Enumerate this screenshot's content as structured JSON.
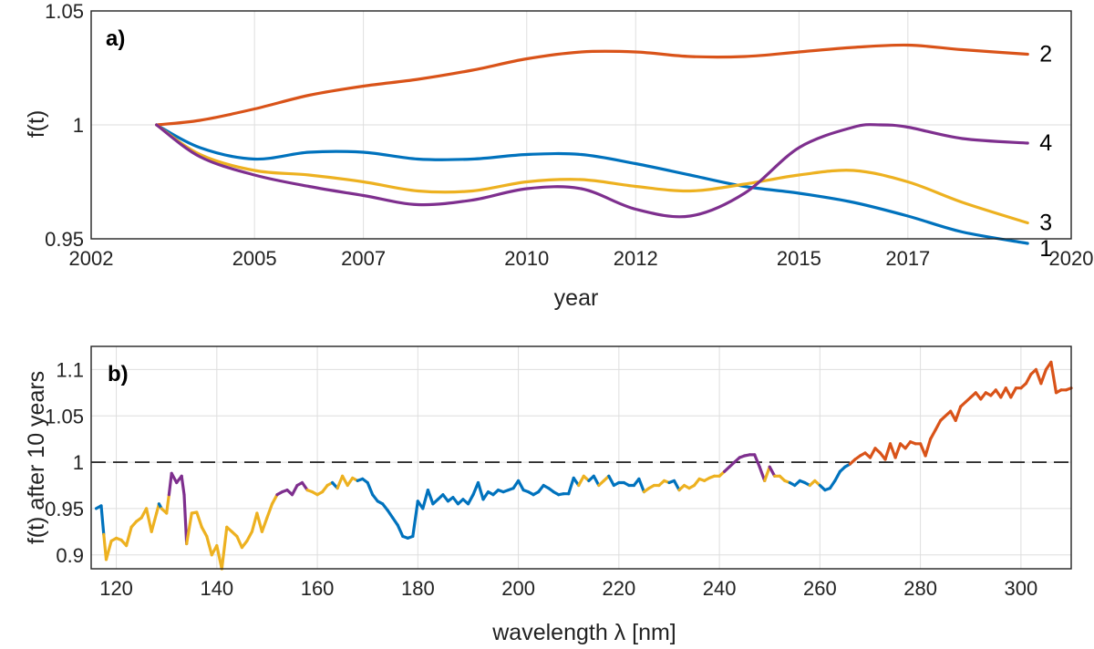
{
  "chart_data": [
    {
      "type": "line",
      "panel_label": "a)",
      "title": "",
      "xlabel": "year",
      "ylabel": "f(t)",
      "xlim": [
        2002,
        2020
      ],
      "ylim": [
        0.95,
        1.05
      ],
      "x_ticks": [
        2002,
        2005,
        2007,
        2010,
        2012,
        2015,
        2017,
        2020
      ],
      "y_ticks": [
        0.95,
        1,
        1.05
      ],
      "y_tick_labels": [
        "0.95",
        "1",
        "1.05"
      ],
      "grid": true,
      "series": [
        {
          "end_label": "1",
          "color": "#0072BD",
          "x": [
            2003.2,
            2004,
            2005,
            2006,
            2007,
            2008,
            2009,
            2010,
            2011,
            2012,
            2013,
            2014,
            2015,
            2016,
            2017,
            2018,
            2019.2
          ],
          "y": [
            1.0,
            0.99,
            0.985,
            0.988,
            0.988,
            0.985,
            0.985,
            0.987,
            0.987,
            0.983,
            0.978,
            0.973,
            0.97,
            0.966,
            0.96,
            0.953,
            0.948
          ]
        },
        {
          "end_label": "2",
          "color": "#D95319",
          "x": [
            2003.2,
            2004,
            2005,
            2006,
            2007,
            2008,
            2009,
            2010,
            2011,
            2012,
            2013,
            2014,
            2015,
            2016,
            2017,
            2018,
            2019.2
          ],
          "y": [
            1.0,
            1.002,
            1.007,
            1.013,
            1.017,
            1.02,
            1.024,
            1.029,
            1.032,
            1.032,
            1.03,
            1.03,
            1.032,
            1.034,
            1.035,
            1.033,
            1.031
          ]
        },
        {
          "end_label": "3",
          "color": "#EDB120",
          "x": [
            2003.2,
            2004,
            2005,
            2006,
            2007,
            2008,
            2009,
            2010,
            2011,
            2012,
            2013,
            2014,
            2015,
            2016,
            2017,
            2018,
            2019.2
          ],
          "y": [
            1.0,
            0.987,
            0.98,
            0.978,
            0.975,
            0.971,
            0.971,
            0.975,
            0.976,
            0.973,
            0.971,
            0.974,
            0.978,
            0.98,
            0.975,
            0.966,
            0.957
          ]
        },
        {
          "end_label": "4",
          "color": "#7E2F8E",
          "x": [
            2003.2,
            2004,
            2005,
            2006,
            2007,
            2008,
            2009,
            2010,
            2011,
            2012,
            2013,
            2014,
            2015,
            2016,
            2016.5,
            2017,
            2018,
            2019.2
          ],
          "y": [
            1.0,
            0.986,
            0.978,
            0.973,
            0.969,
            0.965,
            0.967,
            0.972,
            0.972,
            0.963,
            0.96,
            0.97,
            0.99,
            0.999,
            1.0,
            0.999,
            0.994,
            0.992
          ]
        }
      ]
    },
    {
      "type": "line",
      "panel_label": "b)",
      "title": "",
      "xlabel": "wavelength λ [nm]",
      "ylabel": "f(t) after 10 years",
      "xlim": [
        115,
        310
      ],
      "ylim": [
        0.885,
        1.125
      ],
      "x_ticks": [
        120,
        140,
        160,
        180,
        200,
        220,
        240,
        260,
        280,
        300
      ],
      "y_ticks": [
        0.9,
        0.95,
        1,
        1.05,
        1.1
      ],
      "y_tick_labels": [
        "0.9",
        "0.95",
        "1",
        "1.05",
        "1.1"
      ],
      "reference_line": {
        "y": 1,
        "style": "dashed"
      },
      "grid": true,
      "class_colors": {
        "1": "#0072BD",
        "2": "#D95319",
        "3": "#EDB120",
        "4": "#7E2F8E"
      },
      "points": [
        [
          116,
          0.95,
          1
        ],
        [
          117,
          0.953,
          1
        ],
        [
          117.5,
          0.922,
          3
        ],
        [
          118,
          0.895,
          3
        ],
        [
          119,
          0.915,
          3
        ],
        [
          120,
          0.918,
          3
        ],
        [
          121,
          0.916,
          3
        ],
        [
          122,
          0.91,
          3
        ],
        [
          123,
          0.93,
          3
        ],
        [
          124,
          0.936,
          3
        ],
        [
          125,
          0.94,
          3
        ],
        [
          126,
          0.95,
          3
        ],
        [
          127,
          0.925,
          3
        ],
        [
          128,
          0.945,
          3
        ],
        [
          128.5,
          0.955,
          1
        ],
        [
          129,
          0.95,
          3
        ],
        [
          130,
          0.945,
          3
        ],
        [
          130.5,
          0.965,
          4
        ],
        [
          131,
          0.988,
          4
        ],
        [
          132,
          0.978,
          4
        ],
        [
          133,
          0.985,
          4
        ],
        [
          133.5,
          0.965,
          4
        ],
        [
          134,
          0.912,
          3
        ],
        [
          135,
          0.945,
          3
        ],
        [
          136,
          0.946,
          3
        ],
        [
          137,
          0.93,
          3
        ],
        [
          138,
          0.92,
          3
        ],
        [
          139,
          0.9,
          3
        ],
        [
          140,
          0.91,
          3
        ],
        [
          141,
          0.885,
          3
        ],
        [
          142,
          0.93,
          3
        ],
        [
          143,
          0.925,
          3
        ],
        [
          144,
          0.92,
          3
        ],
        [
          145,
          0.908,
          3
        ],
        [
          146,
          0.915,
          3
        ],
        [
          147,
          0.925,
          3
        ],
        [
          148,
          0.945,
          3
        ],
        [
          149,
          0.925,
          3
        ],
        [
          150,
          0.94,
          3
        ],
        [
          151,
          0.955,
          3
        ],
        [
          152,
          0.965,
          4
        ],
        [
          153,
          0.968,
          4
        ],
        [
          154,
          0.97,
          4
        ],
        [
          155,
          0.965,
          4
        ],
        [
          156,
          0.975,
          4
        ],
        [
          157,
          0.978,
          4
        ],
        [
          158,
          0.97,
          3
        ],
        [
          159,
          0.968,
          3
        ],
        [
          160,
          0.965,
          3
        ],
        [
          161,
          0.968,
          3
        ],
        [
          162,
          0.975,
          3
        ],
        [
          163,
          0.978,
          1
        ],
        [
          164,
          0.972,
          3
        ],
        [
          165,
          0.985,
          3
        ],
        [
          166,
          0.975,
          3
        ],
        [
          167,
          0.983,
          3
        ],
        [
          168,
          0.98,
          1
        ],
        [
          169,
          0.982,
          1
        ],
        [
          170,
          0.978,
          1
        ],
        [
          171,
          0.965,
          1
        ],
        [
          172,
          0.958,
          1
        ],
        [
          173,
          0.955,
          1
        ],
        [
          174,
          0.948,
          1
        ],
        [
          175,
          0.94,
          1
        ],
        [
          176,
          0.932,
          1
        ],
        [
          177,
          0.92,
          1
        ],
        [
          178,
          0.918,
          1
        ],
        [
          179,
          0.92,
          1
        ],
        [
          180,
          0.958,
          1
        ],
        [
          181,
          0.95,
          1
        ],
        [
          182,
          0.97,
          1
        ],
        [
          183,
          0.955,
          1
        ],
        [
          184,
          0.96,
          1
        ],
        [
          185,
          0.965,
          1
        ],
        [
          186,
          0.958,
          1
        ],
        [
          187,
          0.962,
          1
        ],
        [
          188,
          0.955,
          1
        ],
        [
          189,
          0.96,
          1
        ],
        [
          190,
          0.955,
          1
        ],
        [
          191,
          0.965,
          1
        ],
        [
          192,
          0.978,
          1
        ],
        [
          193,
          0.96,
          1
        ],
        [
          194,
          0.968,
          1
        ],
        [
          195,
          0.965,
          1
        ],
        [
          196,
          0.97,
          1
        ],
        [
          197,
          0.968,
          1
        ],
        [
          198,
          0.97,
          1
        ],
        [
          199,
          0.972,
          1
        ],
        [
          200,
          0.98,
          1
        ],
        [
          201,
          0.97,
          1
        ],
        [
          202,
          0.968,
          1
        ],
        [
          203,
          0.965,
          1
        ],
        [
          204,
          0.968,
          1
        ],
        [
          205,
          0.975,
          1
        ],
        [
          206,
          0.972,
          1
        ],
        [
          207,
          0.968,
          1
        ],
        [
          208,
          0.965,
          1
        ],
        [
          209,
          0.966,
          1
        ],
        [
          210,
          0.966,
          1
        ],
        [
          211,
          0.983,
          1
        ],
        [
          212,
          0.975,
          3
        ],
        [
          213,
          0.985,
          3
        ],
        [
          214,
          0.98,
          1
        ],
        [
          215,
          0.985,
          1
        ],
        [
          216,
          0.975,
          3
        ],
        [
          217,
          0.98,
          3
        ],
        [
          218,
          0.985,
          1
        ],
        [
          219,
          0.975,
          1
        ],
        [
          220,
          0.978,
          1
        ],
        [
          221,
          0.978,
          1
        ],
        [
          222,
          0.975,
          1
        ],
        [
          223,
          0.975,
          1
        ],
        [
          224,
          0.982,
          1
        ],
        [
          225,
          0.968,
          3
        ],
        [
          226,
          0.972,
          3
        ],
        [
          227,
          0.975,
          3
        ],
        [
          228,
          0.975,
          3
        ],
        [
          229,
          0.98,
          3
        ],
        [
          230,
          0.978,
          1
        ],
        [
          231,
          0.98,
          1
        ],
        [
          232,
          0.97,
          3
        ],
        [
          233,
          0.975,
          3
        ],
        [
          234,
          0.972,
          3
        ],
        [
          235,
          0.975,
          3
        ],
        [
          236,
          0.982,
          3
        ],
        [
          237,
          0.98,
          3
        ],
        [
          238,
          0.983,
          3
        ],
        [
          239,
          0.985,
          3
        ],
        [
          240,
          0.985,
          3
        ],
        [
          241,
          0.99,
          4
        ],
        [
          242,
          0.995,
          4
        ],
        [
          243,
          1.0,
          4
        ],
        [
          244,
          1.005,
          4
        ],
        [
          245,
          1.007,
          4
        ],
        [
          246,
          1.008,
          4
        ],
        [
          247,
          1.008,
          4
        ],
        [
          248,
          0.995,
          4
        ],
        [
          249,
          0.98,
          3
        ],
        [
          250,
          0.995,
          4
        ],
        [
          251,
          0.985,
          3
        ],
        [
          252,
          0.985,
          3
        ],
        [
          253,
          0.98,
          3
        ],
        [
          254,
          0.978,
          1
        ],
        [
          255,
          0.975,
          1
        ],
        [
          256,
          0.98,
          1
        ],
        [
          257,
          0.978,
          1
        ],
        [
          258,
          0.975,
          3
        ],
        [
          259,
          0.98,
          3
        ],
        [
          260,
          0.975,
          1
        ],
        [
          261,
          0.97,
          1
        ],
        [
          262,
          0.972,
          1
        ],
        [
          263,
          0.98,
          1
        ],
        [
          264,
          0.99,
          1
        ],
        [
          265,
          0.995,
          1
        ],
        [
          266,
          0.998,
          2
        ],
        [
          267,
          1.003,
          2
        ],
        [
          268,
          1.007,
          2
        ],
        [
          269,
          1.01,
          2
        ],
        [
          270,
          1.005,
          2
        ],
        [
          271,
          1.015,
          2
        ],
        [
          272,
          1.01,
          2
        ],
        [
          273,
          1.003,
          2
        ],
        [
          274,
          1.02,
          2
        ],
        [
          275,
          1.005,
          2
        ],
        [
          276,
          1.02,
          2
        ],
        [
          277,
          1.015,
          2
        ],
        [
          278,
          1.022,
          2
        ],
        [
          279,
          1.02,
          2
        ],
        [
          280,
          1.02,
          2
        ],
        [
          281,
          1.007,
          2
        ],
        [
          282,
          1.025,
          2
        ],
        [
          283,
          1.035,
          2
        ],
        [
          284,
          1.045,
          2
        ],
        [
          285,
          1.05,
          2
        ],
        [
          286,
          1.055,
          2
        ],
        [
          287,
          1.045,
          2
        ],
        [
          288,
          1.06,
          2
        ],
        [
          289,
          1.065,
          2
        ],
        [
          290,
          1.07,
          2
        ],
        [
          291,
          1.075,
          2
        ],
        [
          292,
          1.068,
          2
        ],
        [
          293,
          1.075,
          2
        ],
        [
          294,
          1.072,
          2
        ],
        [
          295,
          1.078,
          2
        ],
        [
          296,
          1.07,
          2
        ],
        [
          297,
          1.08,
          2
        ],
        [
          298,
          1.07,
          2
        ],
        [
          299,
          1.08,
          2
        ],
        [
          300,
          1.08,
          2
        ],
        [
          301,
          1.085,
          2
        ],
        [
          302,
          1.095,
          2
        ],
        [
          303,
          1.1,
          2
        ],
        [
          304,
          1.085,
          2
        ],
        [
          305,
          1.1,
          2
        ],
        [
          306,
          1.108,
          2
        ],
        [
          307,
          1.075,
          2
        ],
        [
          308,
          1.078,
          2
        ],
        [
          309,
          1.078,
          2
        ],
        [
          310,
          1.08,
          2
        ]
      ]
    }
  ]
}
